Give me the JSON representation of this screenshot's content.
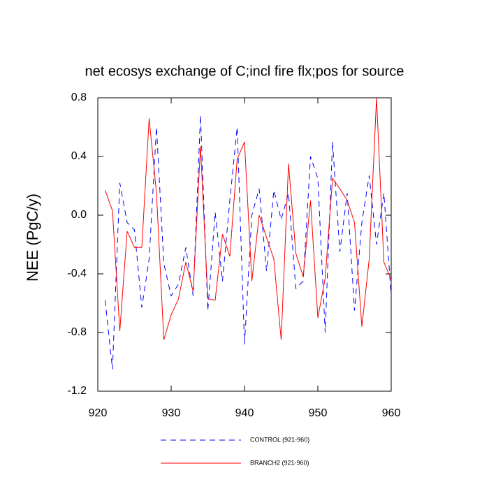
{
  "chart_data": {
    "type": "line",
    "title": "net ecosys exchange of C;incl fire flx;pos for source",
    "y_label": "NEE  (PgC/y)",
    "x": [
      921,
      922,
      923,
      924,
      925,
      926,
      927,
      928,
      929,
      930,
      931,
      932,
      933,
      934,
      935,
      936,
      937,
      938,
      939,
      940,
      941,
      942,
      943,
      944,
      945,
      946,
      947,
      948,
      949,
      950,
      951,
      952,
      953,
      954,
      955,
      956,
      957,
      958,
      959,
      960
    ],
    "series": [
      {
        "name": "CONTROL (921-960)",
        "color": "#0000ff",
        "dash": true,
        "values": [
          -0.58,
          -1.05,
          0.22,
          -0.05,
          -0.1,
          -0.63,
          -0.3,
          0.6,
          -0.33,
          -0.55,
          -0.47,
          -0.22,
          -0.55,
          0.68,
          -0.65,
          0.02,
          -0.45,
          0.1,
          0.6,
          -0.88,
          0.0,
          0.18,
          -0.38,
          0.17,
          -0.03,
          0.15,
          -0.5,
          -0.45,
          0.4,
          0.25,
          -0.8,
          0.5,
          -0.25,
          0.15,
          -0.65,
          -0.05,
          0.27,
          -0.2,
          0.15,
          -0.55
        ]
      },
      {
        "name": "BRANCH2 (921-960)",
        "color": "#ff0000",
        "dash": false,
        "values": [
          0.17,
          0.03,
          -0.79,
          -0.11,
          -0.22,
          -0.22,
          0.66,
          0.15,
          -0.85,
          -0.68,
          -0.57,
          -0.32,
          -0.52,
          0.47,
          -0.57,
          -0.58,
          -0.13,
          -0.28,
          0.38,
          0.5,
          -0.45,
          0.0,
          -0.15,
          -0.3,
          -0.85,
          0.35,
          -0.26,
          -0.42,
          0.1,
          -0.7,
          -0.43,
          0.25,
          0.18,
          0.1,
          -0.05,
          -0.76,
          -0.3,
          0.8,
          -0.32,
          -0.44
        ]
      }
    ],
    "xlim": [
      920,
      960
    ],
    "xticks": [
      920,
      930,
      940,
      950,
      960
    ],
    "ylim": [
      -1.2,
      0.8
    ],
    "yticks": [
      -1.2,
      -0.8,
      -0.4,
      {
        "value": 0,
        "label": "0.0"
      },
      0.4,
      0.8
    ]
  }
}
